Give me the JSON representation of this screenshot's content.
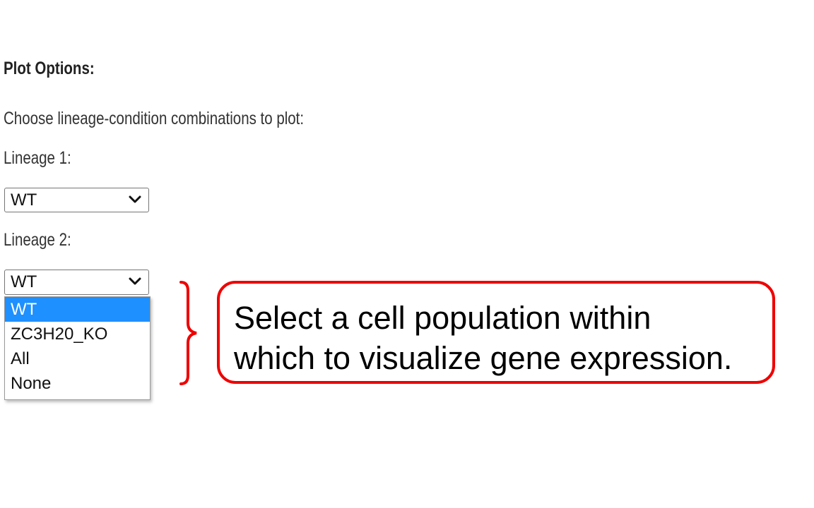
{
  "plot_options": {
    "title": "Plot Options:",
    "instruction": "Choose lineage-condition combinations to plot:",
    "lineage1": {
      "label": "Lineage 1:",
      "value": "WT"
    },
    "lineage2": {
      "label": "Lineage 2:",
      "value": "WT",
      "dropdown_open": true,
      "options": [
        "WT",
        "ZC3H20_KO",
        "All",
        "None"
      ],
      "highlighted_option": "WT"
    }
  },
  "annotation": {
    "line1": "Select a cell population within",
    "line2": "which to visualize gene expression.",
    "border_color": "#ee0000"
  },
  "colors": {
    "option_highlight": "#1e90ff"
  },
  "icons": {
    "select_arrow": "chevron-down-icon",
    "brace": "curly-brace-icon"
  }
}
